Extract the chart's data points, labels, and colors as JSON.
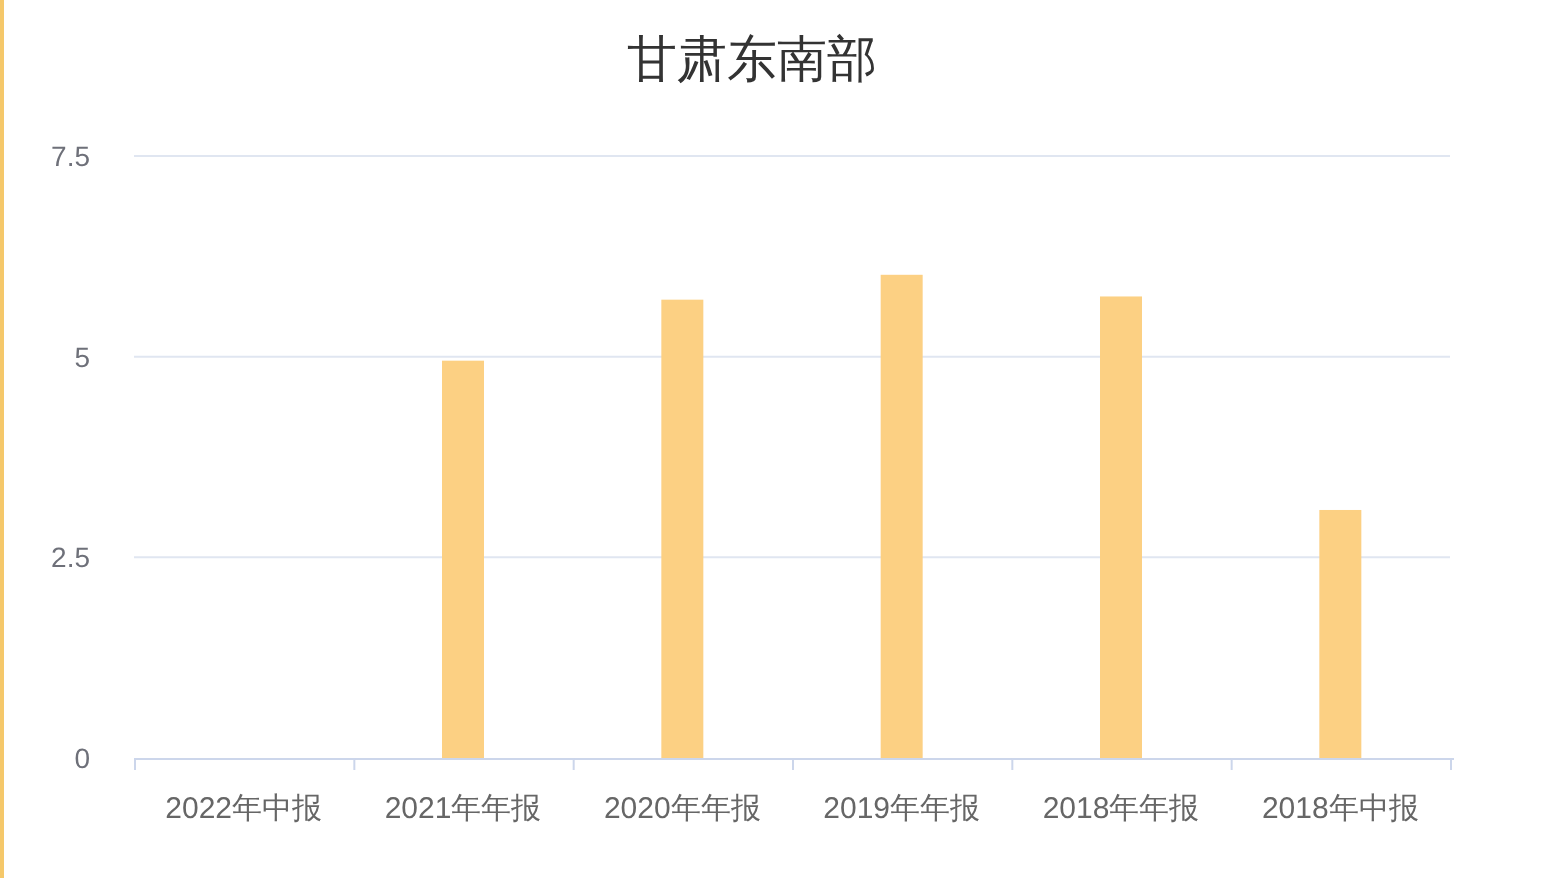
{
  "chart_data": {
    "type": "bar",
    "title": "甘肃东南部",
    "categories": [
      "2022年中报",
      "2021年年报",
      "2020年年报",
      "2019年年报",
      "2018年年报",
      "2018年中报"
    ],
    "values": [
      null,
      4.95,
      5.71,
      6.02,
      5.75,
      3.09
    ],
    "color": "#fcd083",
    "ylim": [
      0,
      7.5
    ],
    "yticks": [
      0,
      2.5,
      5,
      7.5
    ],
    "grid": "y"
  }
}
